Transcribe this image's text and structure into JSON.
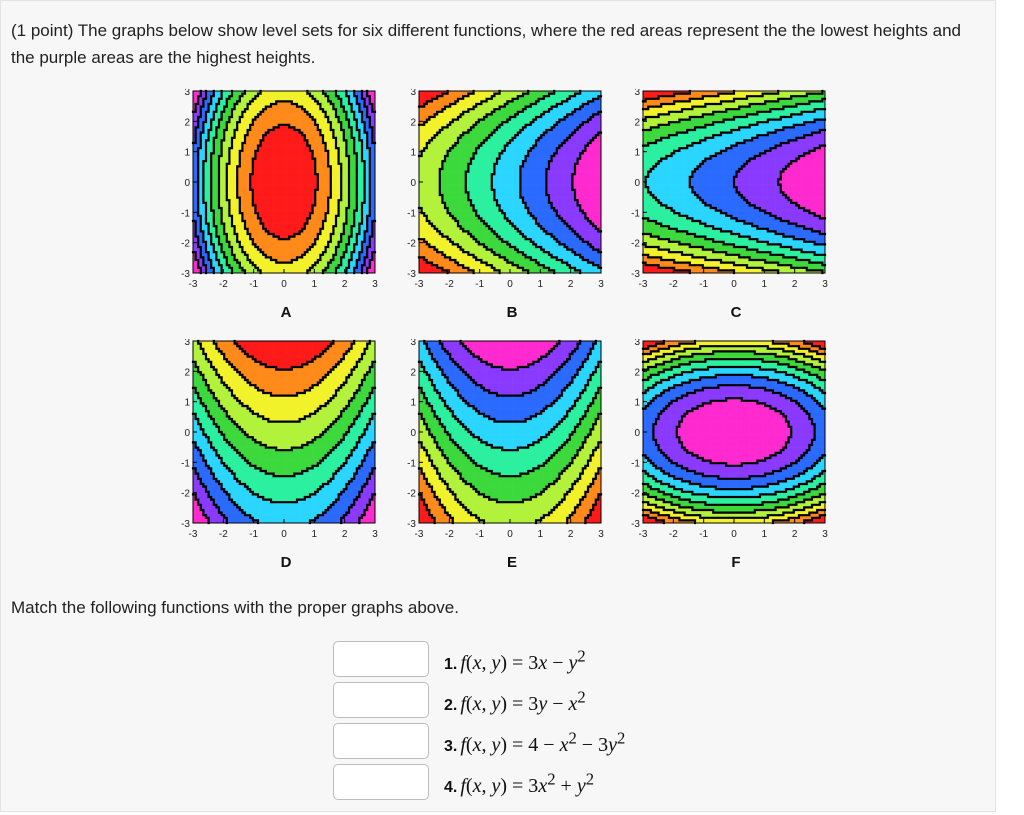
{
  "problem": {
    "intro": "(1 point) The graphs below show level sets for six different functions, where the red areas represent the the lowest heights and the purple areas are the highest heights.",
    "match_instruction": "Match the following functions with the proper graphs above."
  },
  "plots": [
    {
      "label": "A",
      "kind": "A"
    },
    {
      "label": "B",
      "kind": "B"
    },
    {
      "label": "C",
      "kind": "C"
    },
    {
      "label": "D",
      "kind": "D"
    },
    {
      "label": "E",
      "kind": "E"
    },
    {
      "label": "F",
      "kind": "F"
    }
  ],
  "axis": {
    "x_ticks": [
      "-3",
      "-2",
      "-1",
      "0",
      "1",
      "2",
      "3"
    ],
    "y_ticks": [
      "3",
      "2",
      "1",
      "0",
      "-1",
      "-2",
      "-3"
    ]
  },
  "functions": [
    {
      "num": "1.",
      "expr_html": "<i>f</i>(<i>x</i>, <i>y</i>) = 3<i>x</i> &minus; <i>y</i><sup>2</sup>",
      "answer": ""
    },
    {
      "num": "2.",
      "expr_html": "<i>f</i>(<i>x</i>, <i>y</i>) = 3<i>y</i> &minus; <i>x</i><sup>2</sup>",
      "answer": ""
    },
    {
      "num": "3.",
      "expr_html": "<i>f</i>(<i>x</i>, <i>y</i>) = 4 &minus; <i>x</i><sup>2</sup> &minus; 3<i>y</i><sup>2</sup>",
      "answer": ""
    },
    {
      "num": "4.",
      "expr_html": "<i>f</i>(<i>x</i>, <i>y</i>) = 3<i>x</i><sup>2</sup> + <i>y</i><sup>2</sup>",
      "answer": ""
    }
  ],
  "palette": [
    "#ff1a1a",
    "#ff8a1a",
    "#f2f22a",
    "#b2f23a",
    "#3cd93c",
    "#2af0a0",
    "#2ad6ff",
    "#2a6aff",
    "#8a3aff",
    "#ff2acf"
  ]
}
